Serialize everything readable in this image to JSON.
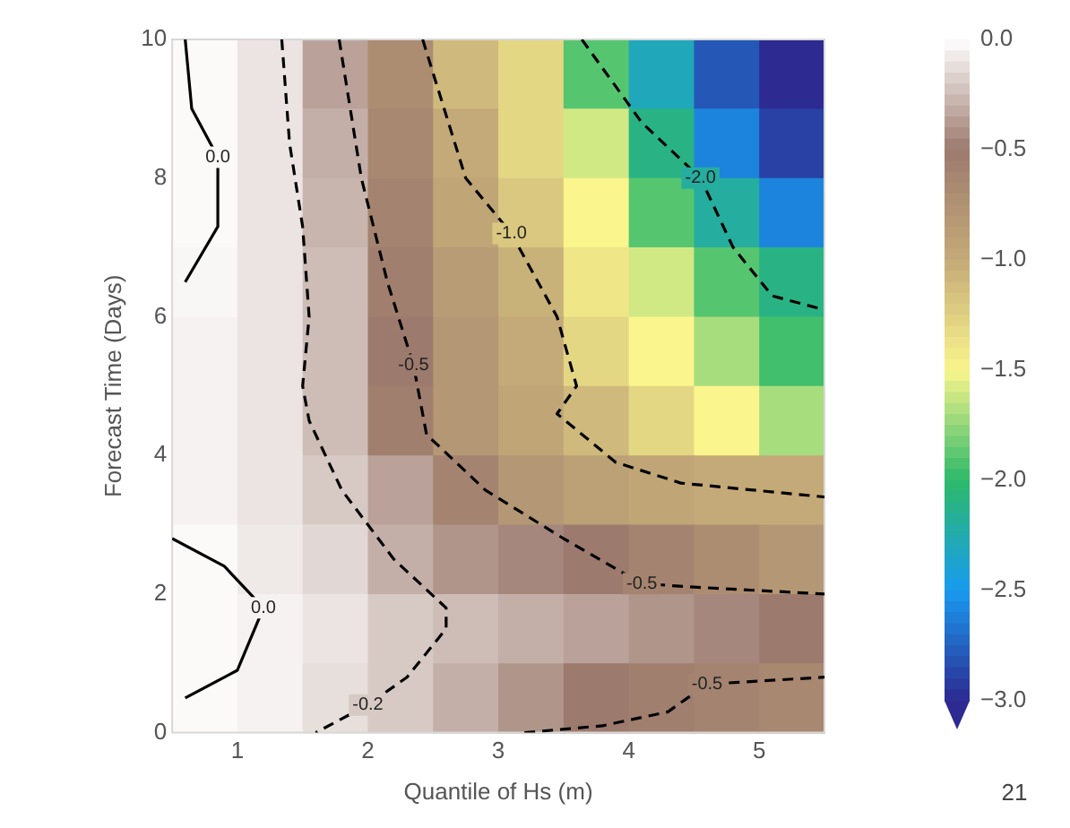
{
  "chart_data": {
    "type": "heatmap",
    "xlabel": "Quantile of Hs (m)",
    "ylabel": "Forecast Time (Days)",
    "xlim": [
      0.5,
      5.5
    ],
    "xticks": [
      1,
      2,
      3,
      4,
      5
    ],
    "ylim": [
      0,
      10
    ],
    "yticks": [
      0,
      2,
      4,
      6,
      8,
      10
    ],
    "clim": [
      -3,
      0
    ],
    "cticks": [
      {
        "value": 0,
        "label": "0.0"
      },
      {
        "value": -0.5,
        "label": "−0.5"
      },
      {
        "value": -1,
        "label": "−1.0"
      },
      {
        "value": -1.5,
        "label": "−1.5"
      },
      {
        "value": -2,
        "label": "−2.0"
      },
      {
        "value": -2.5,
        "label": "−2.5"
      },
      {
        "value": -3,
        "label": "−3.0"
      }
    ],
    "cells": [
      [
        -0.02,
        -0.1,
        -0.35,
        -0.7,
        -1.1,
        -1.3,
        -1.9,
        -2.3,
        -2.8,
        -3.0
      ],
      [
        -0.02,
        -0.1,
        -0.3,
        -0.65,
        -1.0,
        -1.3,
        -1.6,
        -2.1,
        -2.6,
        -2.9
      ],
      [
        -0.02,
        -0.1,
        -0.28,
        -0.6,
        -0.95,
        -1.2,
        -1.5,
        -1.9,
        -2.2,
        -2.6
      ],
      [
        -0.03,
        -0.1,
        -0.25,
        -0.55,
        -0.85,
        -1.05,
        -1.4,
        -1.6,
        -1.9,
        -2.1
      ],
      [
        -0.05,
        -0.1,
        -0.25,
        -0.5,
        -0.8,
        -1.0,
        -1.3,
        -1.5,
        -1.7,
        -1.95
      ],
      [
        -0.05,
        -0.1,
        -0.25,
        -0.55,
        -0.8,
        -0.95,
        -1.1,
        -1.3,
        -1.5,
        -1.7
      ],
      [
        -0.05,
        -0.1,
        -0.2,
        -0.35,
        -0.6,
        -0.8,
        -0.9,
        -0.95,
        -1.0,
        -1.0
      ],
      [
        -0.02,
        -0.08,
        -0.15,
        -0.3,
        -0.4,
        -0.45,
        -0.5,
        -0.6,
        -0.7,
        -0.8
      ],
      [
        -0.02,
        -0.05,
        -0.1,
        -0.2,
        -0.25,
        -0.3,
        -0.35,
        -0.4,
        -0.45,
        -0.5
      ],
      [
        -0.02,
        -0.05,
        -0.12,
        -0.2,
        -0.3,
        -0.4,
        -0.5,
        -0.55,
        -0.6,
        -0.65
      ]
    ],
    "series": [
      {
        "type": "line",
        "color": "#000000",
        "line_style": "solid",
        "x": [
          0.6,
          0.65,
          0.85,
          0.85,
          0.6
        ],
        "values": [
          10,
          9,
          8.3,
          7.3,
          6.5
        ]
      },
      {
        "type": "line",
        "color": "#000000",
        "line_style": "solid",
        "x": [
          0.5,
          0.9,
          1.2,
          1.0,
          0.6
        ],
        "values": [
          2.8,
          2.4,
          1.8,
          0.9,
          0.5
        ]
      },
      {
        "type": "line",
        "color": "#000000",
        "line_style": "dashed",
        "x": [
          1.34,
          1.4,
          1.5,
          1.55,
          1.5,
          1.55,
          1.8,
          2.2,
          2.6,
          2.6,
          2.3,
          2.0,
          1.6
        ],
        "values": [
          10,
          8.5,
          7.3,
          6,
          5,
          4.5,
          3.5,
          2.5,
          1.8,
          1.5,
          0.8,
          0.4,
          0
        ]
      },
      {
        "type": "line",
        "color": "#000000",
        "line_style": "dashed",
        "x": [
          1.78,
          1.95,
          2.15,
          2.35,
          2.45,
          2.9,
          3.5,
          4.1,
          4.5,
          5.5
        ],
        "values": [
          10,
          8,
          6.5,
          5.3,
          4.3,
          3.5,
          2.8,
          2.15,
          2.1,
          2.0
        ]
      },
      {
        "type": "line",
        "color": "#000000",
        "line_style": "dashed",
        "x": [
          2.42,
          2.75,
          3.1,
          3.45,
          3.6,
          3.45,
          3.9,
          4.4,
          5.5
        ],
        "values": [
          10,
          8,
          7.2,
          6.0,
          5,
          4.6,
          3.9,
          3.6,
          3.4
        ]
      },
      {
        "type": "line",
        "color": "#000000",
        "line_style": "dashed",
        "x": [
          3.64,
          4.1,
          4.55,
          4.8,
          5.1,
          5.5
        ],
        "values": [
          10,
          8.8,
          8,
          7.0,
          6.3,
          6.1
        ]
      },
      {
        "type": "line",
        "color": "#000000",
        "line_style": "dashed",
        "x": [
          3.2,
          3.8,
          4.3,
          4.6,
          5.5
        ],
        "values": [
          0,
          0.1,
          0.3,
          0.7,
          0.8
        ]
      }
    ],
    "annotations": [
      {
        "text": "0.0",
        "x": 0.85,
        "y": 8.3
      },
      {
        "text": "0.0",
        "x": 1.2,
        "y": 1.8
      },
      {
        "text": "-0.2",
        "x": 2.0,
        "y": 0.4
      },
      {
        "text": "-0.5",
        "x": 2.35,
        "y": 5.3
      },
      {
        "text": "-1.0",
        "x": 3.1,
        "y": 7.2
      },
      {
        "text": "-2.0",
        "x": 4.55,
        "y": 8
      },
      {
        "text": "-0.5",
        "x": 4.1,
        "y": 2.15
      },
      {
        "text": "-0.5",
        "x": 4.6,
        "y": 0.7
      },
      "21"
    ]
  }
}
